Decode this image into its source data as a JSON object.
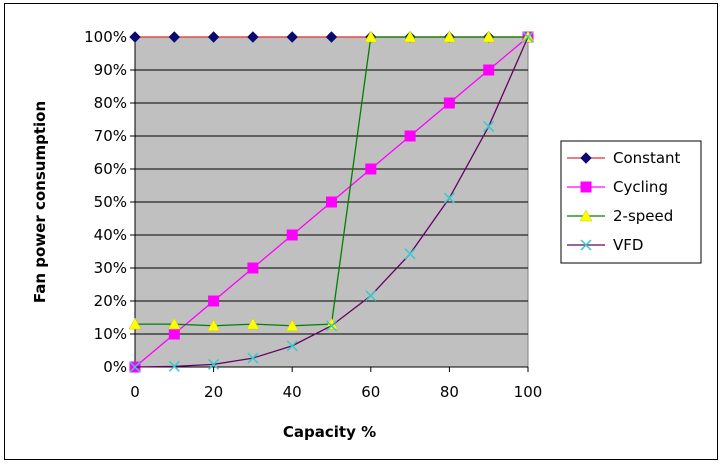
{
  "chart_data": {
    "type": "line",
    "xlabel": "Capacity %",
    "ylabel": "Fan power consumption",
    "xlim": [
      0,
      100
    ],
    "ylim": [
      0,
      100
    ],
    "x_ticks": [
      "0",
      "20",
      "40",
      "60",
      "80",
      "100"
    ],
    "y_ticks": [
      "0%",
      "10%",
      "20%",
      "30%",
      "40%",
      "50%",
      "60%",
      "70%",
      "80%",
      "90%",
      "100%"
    ],
    "grid": "horizontal",
    "legend_position": "right",
    "x": [
      0,
      10,
      20,
      30,
      40,
      50,
      60,
      70,
      80,
      90,
      100
    ],
    "series": [
      {
        "name": "Constant",
        "color": "#e03030",
        "marker": "diamond",
        "marker_color": "#0a0a6e",
        "values": [
          100,
          100,
          100,
          100,
          100,
          100,
          100,
          100,
          100,
          100,
          100
        ]
      },
      {
        "name": "Cycling",
        "color": "#ff00ff",
        "marker": "square",
        "marker_color": "#ff00ff",
        "values": [
          0,
          10,
          20,
          30,
          40,
          50,
          60,
          70,
          80,
          90,
          100
        ]
      },
      {
        "name": "2-speed",
        "color": "#008000",
        "marker": "triangle",
        "marker_color": "#ffff00",
        "values": [
          13,
          13,
          12.5,
          13,
          12.5,
          13,
          100,
          100,
          100,
          100,
          100
        ]
      },
      {
        "name": "VFD",
        "color": "#660066",
        "marker": "x",
        "marker_color": "#33cccc",
        "values": [
          0,
          0.2,
          0.8,
          2.7,
          6.4,
          12.5,
          21.6,
          34.3,
          51.2,
          72.9,
          100
        ]
      }
    ],
    "colors": {
      "plot_background": "#c0c0c0",
      "gridline": "#000000"
    }
  }
}
